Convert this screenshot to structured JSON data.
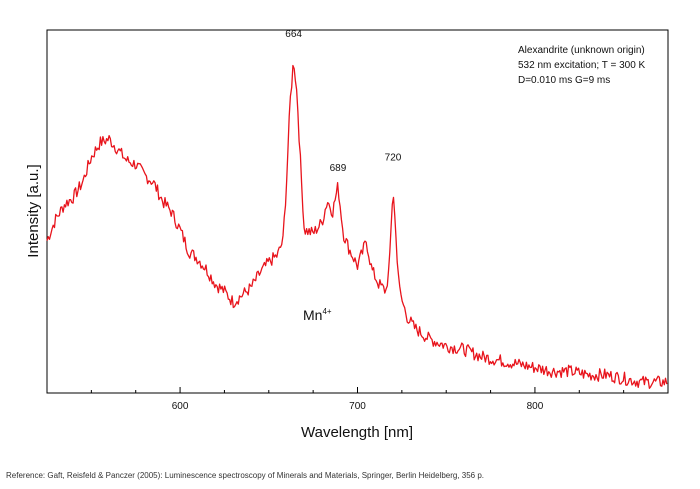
{
  "chart_data": {
    "type": "line",
    "xlabel": "Wavelength [nm]",
    "ylabel": "Intensity [a.u.]",
    "xlim": [
      525,
      875
    ],
    "ylim": [
      0,
      1
    ],
    "y_ticks_labeled": false,
    "x_ticks": [
      600,
      700,
      800
    ],
    "grid": false,
    "line_color": "#e8141c",
    "legend_lines": [
      "Alexandrite (unknown origin)",
      "532 nm excitation; T = 300 K",
      "D=0.010 ms G=9 ms"
    ],
    "legend_position": "top-right",
    "annotations": [
      {
        "text": "664",
        "x": 664,
        "y": 0.97
      },
      {
        "text": "689",
        "x": 689,
        "y": 0.6
      },
      {
        "text": "720",
        "x": 720,
        "y": 0.63
      }
    ],
    "ion_label": {
      "base": "Mn",
      "sup": "4+",
      "x": 682,
      "y": 0.2
    },
    "series": [
      {
        "x": [
          525,
          530,
          535,
          540,
          545,
          550,
          555,
          560,
          565,
          570,
          575,
          580,
          585,
          590,
          595,
          600,
          605,
          610,
          615,
          620,
          625,
          630,
          635,
          640,
          645,
          650,
          655,
          658,
          660,
          662,
          664,
          666,
          668,
          670,
          675,
          680,
          683,
          686,
          689,
          692,
          695,
          700,
          703,
          705,
          708,
          712,
          716,
          718,
          720,
          722,
          724,
          728,
          732,
          740,
          750,
          760,
          770,
          780,
          790,
          800,
          810,
          820,
          830,
          840,
          850,
          860,
          870,
          875
        ],
        "y": [
          0.42,
          0.48,
          0.52,
          0.54,
          0.58,
          0.65,
          0.69,
          0.7,
          0.67,
          0.64,
          0.63,
          0.6,
          0.58,
          0.53,
          0.5,
          0.45,
          0.39,
          0.37,
          0.34,
          0.3,
          0.28,
          0.25,
          0.27,
          0.29,
          0.33,
          0.36,
          0.38,
          0.42,
          0.58,
          0.8,
          0.92,
          0.82,
          0.62,
          0.45,
          0.44,
          0.47,
          0.53,
          0.5,
          0.57,
          0.44,
          0.4,
          0.35,
          0.39,
          0.42,
          0.34,
          0.3,
          0.28,
          0.35,
          0.57,
          0.4,
          0.27,
          0.21,
          0.18,
          0.15,
          0.13,
          0.12,
          0.1,
          0.09,
          0.08,
          0.07,
          0.06,
          0.06,
          0.05,
          0.05,
          0.04,
          0.03,
          0.03,
          0.03
        ]
      }
    ]
  },
  "reference": "Reference: Gaft, Reisfeld & Panczer (2005): Luminescence spectroscopy of Minerals and Materials, Springer, Berlin Heidelberg, 356 p."
}
